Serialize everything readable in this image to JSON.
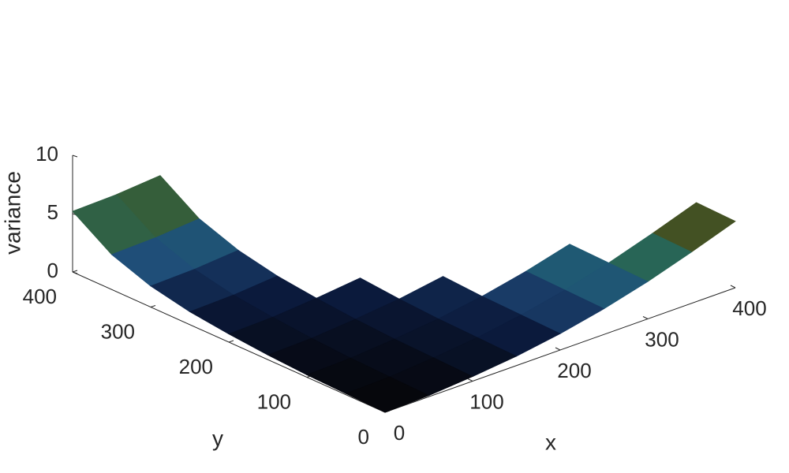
{
  "chart_data": {
    "type": "surface",
    "xlabel": "x",
    "ylabel": "y",
    "zlabel": "variance",
    "x": [
      0,
      50,
      100,
      150,
      200,
      250,
      300,
      350,
      400
    ],
    "y": [
      0,
      50,
      100,
      150,
      200,
      250,
      300,
      350,
      400
    ],
    "z": [
      [
        0,
        0.1,
        0.4,
        0.8,
        1.4,
        2.2,
        3.2,
        4.4,
        5.7
      ],
      [
        0.1,
        0.2,
        0.5,
        0.9,
        1.5,
        2.3,
        3.3,
        4.5,
        5.8
      ],
      [
        0.2,
        0.3,
        0.6,
        1.0,
        1.6,
        2.4,
        3.4,
        null,
        null
      ],
      [
        0.4,
        0.5,
        0.8,
        1.2,
        1.8,
        null,
        null,
        null,
        null
      ],
      [
        0.7,
        0.8,
        1.1,
        1.5,
        null,
        null,
        null,
        null,
        null
      ],
      [
        1.1,
        1.2,
        1.5,
        null,
        null,
        null,
        null,
        null,
        null
      ],
      [
        1.8,
        1.9,
        2.2,
        null,
        null,
        null,
        null,
        null,
        null
      ],
      [
        3.0,
        3.1,
        3.4,
        null,
        null,
        null,
        null,
        null,
        null
      ],
      [
        5.2,
        5.3,
        5.6,
        null,
        null,
        null,
        null,
        null,
        null
      ]
    ],
    "xlim": [
      0,
      400
    ],
    "ylim": [
      0,
      400
    ],
    "zlim": [
      0,
      10
    ],
    "xticks": [
      0,
      100,
      200,
      300,
      400
    ],
    "yticks": [
      0,
      100,
      200,
      300,
      400
    ],
    "zticks": [
      0,
      5,
      10
    ],
    "colormap": [
      "#050508",
      "#0b1a3c",
      "#1f4a7a",
      "#1f6a6a",
      "#3c5a2a",
      "#4d4418"
    ]
  }
}
